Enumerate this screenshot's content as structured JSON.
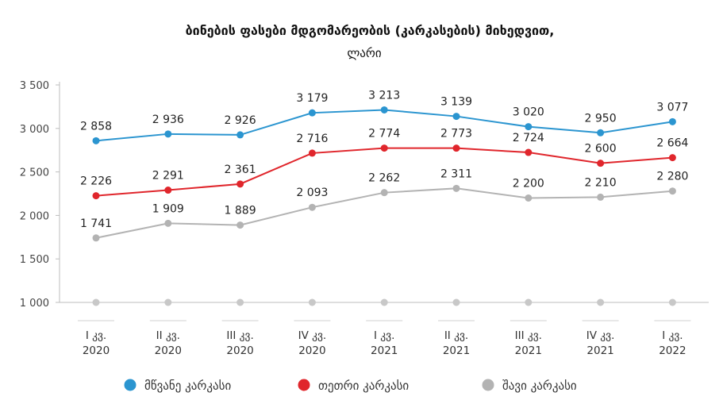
{
  "chart_data": {
    "type": "line",
    "title": "ბინების ფასები მდგომარეობის (კარკასების) მიხედვით,",
    "subtitle": "ლარი",
    "categories": [
      [
        "I კვ.",
        "2020"
      ],
      [
        "II კვ.",
        "2020"
      ],
      [
        "III კვ.",
        "2020"
      ],
      [
        "IV კვ.",
        "2020"
      ],
      [
        "I კვ.",
        "2021"
      ],
      [
        "II კვ.",
        "2021"
      ],
      [
        "III კვ.",
        "2021"
      ],
      [
        "IV კვ.",
        "2021"
      ],
      [
        "I კვ.",
        "2022"
      ]
    ],
    "yticks": [
      "1 000",
      "1 500",
      "2 000",
      "2 500",
      "3 000",
      "3 500"
    ],
    "ylim": [
      1000,
      3500
    ],
    "baseline_value": 1000,
    "series": [
      {
        "name": "მწვანე კარკასი",
        "color": "#2b95d0",
        "values": [
          2858,
          2936,
          2926,
          3179,
          3213,
          3139,
          3020,
          2950,
          3077
        ],
        "labels": [
          "2 858",
          "2 936",
          "2 926",
          "3 179",
          "3 213",
          "3 139",
          "3 020",
          "2 950",
          "3 077"
        ]
      },
      {
        "name": "თეთრი კარკასი",
        "color": "#e0262c",
        "values": [
          2226,
          2291,
          2361,
          2716,
          2774,
          2773,
          2724,
          2600,
          2664
        ],
        "labels": [
          "2 226",
          "2 291",
          "2 361",
          "2 716",
          "2 774",
          "2 773",
          "2 724",
          "2 600",
          "2 664"
        ]
      },
      {
        "name": "შავი კარკასი",
        "color": "#b3b3b3",
        "values": [
          1741,
          1909,
          1889,
          2093,
          2262,
          2311,
          2200,
          2210,
          2280
        ],
        "labels": [
          "1 741",
          "1 909",
          "1 889",
          "2 093",
          "2 262",
          "2 311",
          "2 200",
          "2 210",
          "2 280"
        ]
      }
    ],
    "grid": false,
    "legend": "bottom"
  }
}
